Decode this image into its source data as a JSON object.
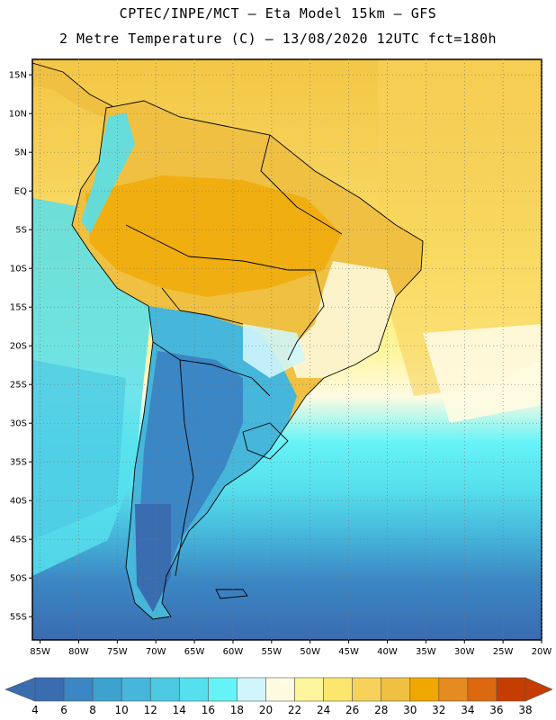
{
  "header": {
    "line1": "CPTEC/INPE/MCT –  Eta Model 15km – GFS",
    "line2": "2 Metre Temperature (C) – 13/08/2020 12UTC fct=180h"
  },
  "map": {
    "lat_labels": [
      "15N",
      "10N",
      "5N",
      "EQ",
      "5S",
      "10S",
      "15S",
      "20S",
      "25S",
      "30S",
      "35S",
      "40S",
      "45S",
      "50S",
      "55S"
    ],
    "lat_values": [
      15,
      10,
      5,
      0,
      -5,
      -10,
      -15,
      -20,
      -25,
      -30,
      -35,
      -40,
      -45,
      -50,
      -55
    ],
    "lon_labels": [
      "85W",
      "80W",
      "75W",
      "70W",
      "65W",
      "60W",
      "55W",
      "50W",
      "45W",
      "40W",
      "35W",
      "30W",
      "25W",
      "20W"
    ],
    "lon_values": [
      -85,
      -80,
      -75,
      -70,
      -65,
      -60,
      -55,
      -50,
      -45,
      -40,
      -35,
      -30,
      -25,
      -20
    ],
    "lat_range": [
      -58,
      17
    ],
    "lon_range": [
      -86,
      -20
    ],
    "grid": "dotted"
  },
  "colorbar": {
    "labels": [
      "4",
      "6",
      "8",
      "10",
      "12",
      "14",
      "16",
      "18",
      "20",
      "22",
      "24",
      "26",
      "28",
      "30",
      "32",
      "34",
      "36",
      "38"
    ],
    "colors": [
      "#3a6cb0",
      "#3b86c4",
      "#3ea2cf",
      "#46b6da",
      "#4dc9e2",
      "#56dfec",
      "#66f3f7",
      "#d0f6fb",
      "#fffbe2",
      "#fff59c",
      "#fde66e",
      "#f6d25a",
      "#efc042",
      "#f0a800",
      "#e68a22",
      "#dc6810",
      "#c53d00"
    ],
    "left_arrow_color": "#3a6cb0",
    "right_arrow_color": "#c53d00"
  }
}
